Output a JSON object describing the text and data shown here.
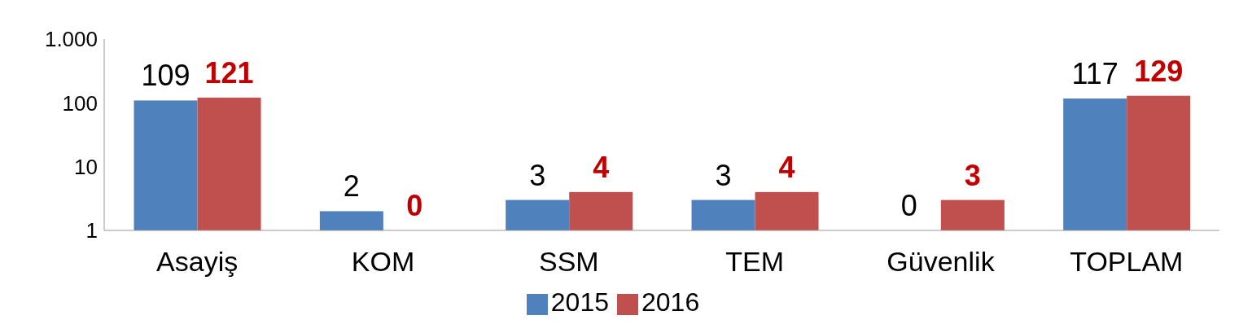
{
  "chart_data": {
    "type": "bar",
    "categories": [
      "Asayiş",
      "KOM",
      "SSM",
      "TEM",
      "Güvenlik",
      "TOPLAM"
    ],
    "series": [
      {
        "name": "2015",
        "color": "#4f81bd",
        "values": [
          109,
          2,
          3,
          3,
          null,
          117
        ],
        "value_labels": [
          "109",
          "2",
          "3",
          "3",
          "0",
          "117"
        ]
      },
      {
        "name": "2016",
        "color": "#c0504d",
        "values": [
          121,
          null,
          4,
          4,
          3,
          129
        ],
        "value_labels": [
          "121",
          "0",
          "4",
          "4",
          "3",
          "129"
        ]
      }
    ],
    "log": "y",
    "ylim": [
      1,
      1000
    ],
    "yticks": [
      1,
      10,
      100,
      {
        "value": 1000,
        "label": "1.000"
      }
    ],
    "legend": "bottom"
  }
}
